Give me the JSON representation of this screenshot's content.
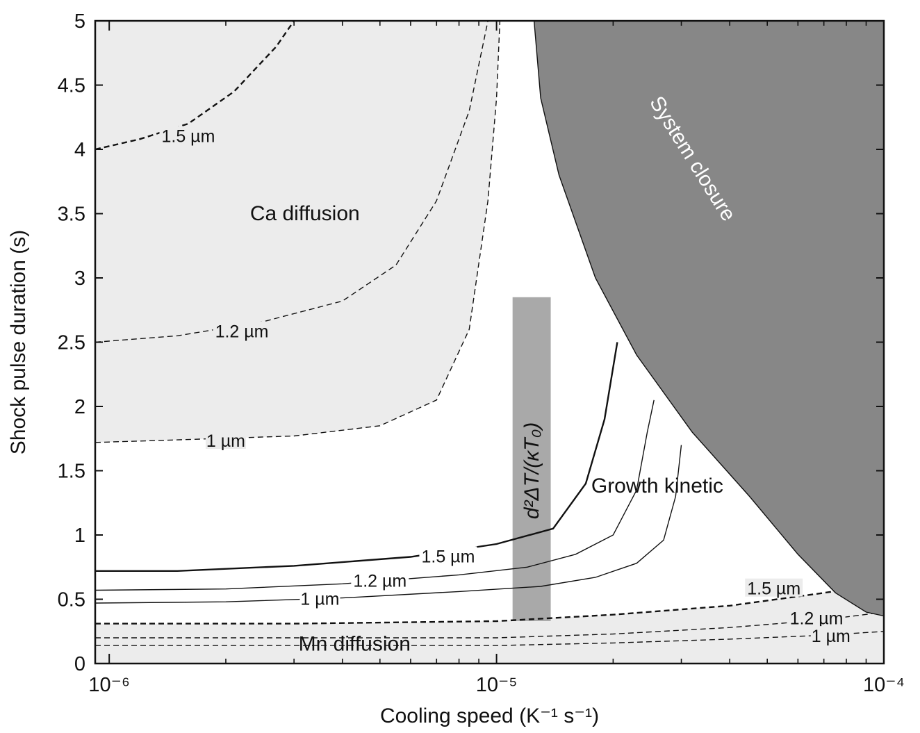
{
  "chart_data": {
    "type": "contour",
    "xlabel": "Cooling speed (K⁻¹ s⁻¹)",
    "ylabel": "Shock pulse duration (s)",
    "xscale": "log",
    "xlim": [
      9.2e-07,
      0.0001
    ],
    "ylim": [
      0,
      5
    ],
    "x_ticks": [
      {
        "value": 1e-06,
        "label": "10⁻⁶"
      },
      {
        "value": 1e-05,
        "label": "10⁻⁵"
      },
      {
        "value": 0.0001,
        "label": "10⁻⁴"
      }
    ],
    "y_ticks": [
      {
        "value": 0,
        "label": "0"
      },
      {
        "value": 0.5,
        "label": "0.5"
      },
      {
        "value": 1,
        "label": "1"
      },
      {
        "value": 1.5,
        "label": "1.5"
      },
      {
        "value": 2,
        "label": "2"
      },
      {
        "value": 2.5,
        "label": "2.5"
      },
      {
        "value": 3,
        "label": "3"
      },
      {
        "value": 3.5,
        "label": "3.5"
      },
      {
        "value": 4,
        "label": "4"
      },
      {
        "value": 4.5,
        "label": "4.5"
      },
      {
        "value": 5,
        "label": "5"
      }
    ],
    "region_labels": {
      "ca": "Ca diffusion",
      "mn": "Mn diffusion",
      "growth": "Growth kinetic",
      "closure": "System closure",
      "band": "d²ΔT/(κT₀)"
    },
    "regions": {
      "ca_diffusion": {
        "color": "#ececec",
        "boundary": [
          [
            9.2e-07,
            1.72
          ],
          [
            1.5e-06,
            1.74
          ],
          [
            3e-06,
            1.77
          ],
          [
            5e-06,
            1.85
          ],
          [
            7e-06,
            2.05
          ],
          [
            8.5e-06,
            2.6
          ],
          [
            9.5e-06,
            3.6
          ],
          [
            1e-05,
            4.4
          ],
          [
            1.02e-05,
            5.0
          ]
        ]
      },
      "mn_diffusion": {
        "color": "#ececec",
        "boundary": [
          [
            9.2e-07,
            0.31
          ],
          [
            3e-06,
            0.31
          ],
          [
            1e-05,
            0.33
          ],
          [
            2e-05,
            0.38
          ],
          [
            4e-05,
            0.45
          ],
          [
            7e-05,
            0.55
          ],
          [
            0.0001,
            0.62
          ]
        ]
      },
      "system_closure": {
        "color": "#878787",
        "boundary": [
          [
            1.25e-05,
            5.0
          ],
          [
            1.3e-05,
            4.4
          ],
          [
            1.45e-05,
            3.8
          ],
          [
            1.8e-05,
            3.0
          ],
          [
            2.3e-05,
            2.4
          ],
          [
            3.2e-05,
            1.8
          ],
          [
            4.5e-05,
            1.3
          ],
          [
            6e-05,
            0.85
          ],
          [
            7.5e-05,
            0.55
          ],
          [
            9e-05,
            0.4
          ],
          [
            0.0001,
            0.37
          ]
        ]
      },
      "band": {
        "color": "#a9a9a9",
        "x_range": [
          1.1e-05,
          1.38e-05
        ],
        "y_range": [
          0.33,
          2.85
        ]
      }
    },
    "contours": [
      {
        "group": "ca",
        "label": "1.5 µm",
        "style": "dashed",
        "points": [
          [
            9.2e-07,
            4.0
          ],
          [
            1.2e-06,
            4.08
          ],
          [
            1.6e-06,
            4.2
          ],
          [
            2.1e-06,
            4.45
          ],
          [
            2.7e-06,
            4.8
          ],
          [
            3e-06,
            5.0
          ]
        ],
        "label_at": [
          1.6e-06,
          4.1
        ]
      },
      {
        "group": "ca",
        "label": "1.2 µm",
        "style": "dashed",
        "points": [
          [
            9.2e-07,
            2.5
          ],
          [
            1.5e-06,
            2.55
          ],
          [
            2.5e-06,
            2.66
          ],
          [
            4e-06,
            2.82
          ],
          [
            5.5e-06,
            3.1
          ],
          [
            7e-06,
            3.6
          ],
          [
            8.5e-06,
            4.3
          ],
          [
            9.5e-06,
            5.0
          ]
        ],
        "label_at": [
          2.2e-06,
          2.58
        ]
      },
      {
        "group": "ca",
        "label": "1 µm",
        "style": "dashed",
        "points": [
          [
            9.2e-07,
            1.72
          ],
          [
            1.5e-06,
            1.74
          ],
          [
            3e-06,
            1.77
          ],
          [
            5e-06,
            1.85
          ],
          [
            7e-06,
            2.05
          ],
          [
            8.5e-06,
            2.6
          ],
          [
            9.5e-06,
            3.6
          ],
          [
            1e-05,
            4.4
          ],
          [
            1.02e-05,
            5.0
          ]
        ],
        "label_at": [
          2e-06,
          1.73
        ]
      },
      {
        "group": "growth",
        "label": "1.5 µm",
        "style": "solid",
        "points": [
          [
            9.2e-07,
            0.72
          ],
          [
            1.5e-06,
            0.72
          ],
          [
            3e-06,
            0.76
          ],
          [
            6e-06,
            0.83
          ],
          [
            1e-05,
            0.93
          ],
          [
            1.4e-05,
            1.05
          ],
          [
            1.7e-05,
            1.4
          ],
          [
            1.9e-05,
            1.9
          ],
          [
            2.05e-05,
            2.5
          ]
        ],
        "label_at": [
          7.5e-06,
          0.83
        ]
      },
      {
        "group": "growth",
        "label": "1.2 µm",
        "style": "solid",
        "points": [
          [
            9.2e-07,
            0.57
          ],
          [
            2e-06,
            0.58
          ],
          [
            4e-06,
            0.62
          ],
          [
            8e-06,
            0.69
          ],
          [
            1.2e-05,
            0.75
          ],
          [
            1.6e-05,
            0.85
          ],
          [
            2e-05,
            1.0
          ],
          [
            2.3e-05,
            1.35
          ],
          [
            2.45e-05,
            1.8
          ],
          [
            2.55e-05,
            2.05
          ]
        ],
        "label_at": [
          5e-06,
          0.64
        ]
      },
      {
        "group": "growth",
        "label": "1 µm",
        "style": "solid",
        "points": [
          [
            9.2e-07,
            0.47
          ],
          [
            2e-06,
            0.48
          ],
          [
            4e-06,
            0.51
          ],
          [
            8e-06,
            0.56
          ],
          [
            1.3e-05,
            0.6
          ],
          [
            1.8e-05,
            0.67
          ],
          [
            2.3e-05,
            0.78
          ],
          [
            2.7e-05,
            0.96
          ],
          [
            2.9e-05,
            1.3
          ],
          [
            3e-05,
            1.7
          ]
        ],
        "label_at": [
          3.5e-06,
          0.5
        ]
      },
      {
        "group": "mn",
        "label": "1.5 µm",
        "style": "dashed",
        "points": [
          [
            9.2e-07,
            0.31
          ],
          [
            3e-06,
            0.31
          ],
          [
            1e-05,
            0.33
          ],
          [
            2e-05,
            0.38
          ],
          [
            4e-05,
            0.45
          ],
          [
            7e-05,
            0.55
          ],
          [
            0.0001,
            0.62
          ]
        ],
        "label_at": [
          5.2e-05,
          0.58
        ]
      },
      {
        "group": "mn",
        "label": "1.2 µm",
        "style": "dashed",
        "points": [
          [
            9.2e-07,
            0.2
          ],
          [
            5e-06,
            0.2
          ],
          [
            1e-05,
            0.2
          ],
          [
            2e-05,
            0.23
          ],
          [
            4e-05,
            0.28
          ],
          [
            7e-05,
            0.34
          ],
          [
            0.0001,
            0.4
          ]
        ],
        "label_at": [
          6.7e-05,
          0.35
        ]
      },
      {
        "group": "mn",
        "label": "1 µm",
        "style": "dashed",
        "points": [
          [
            9.2e-07,
            0.14
          ],
          [
            5e-06,
            0.14
          ],
          [
            1e-05,
            0.14
          ],
          [
            2e-05,
            0.16
          ],
          [
            4e-05,
            0.19
          ],
          [
            7e-05,
            0.22
          ],
          [
            0.0001,
            0.25
          ]
        ],
        "label_at": [
          7.3e-05,
          0.21
        ]
      }
    ]
  }
}
